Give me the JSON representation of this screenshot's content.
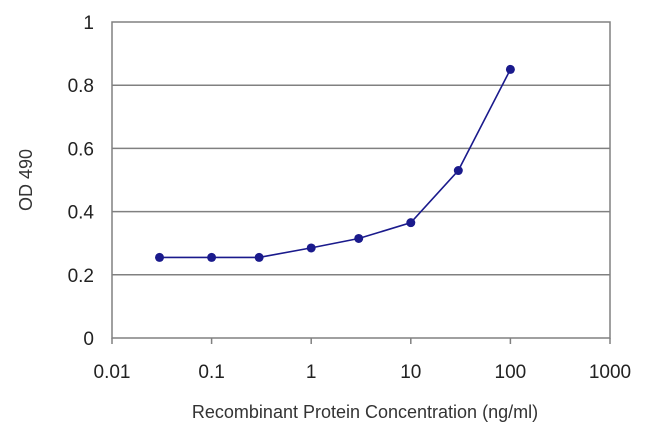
{
  "chart_data": {
    "type": "line",
    "title": "",
    "xlabel": "Recombinant Protein Concentration (ng/ml)",
    "ylabel": "OD 490",
    "x_scale": "log",
    "xlim": [
      0.01,
      1000
    ],
    "ylim": [
      0,
      1
    ],
    "x_ticks": [
      0.01,
      0.1,
      1,
      10,
      100,
      1000
    ],
    "x_tick_labels": [
      "0.01",
      "0.1",
      "1",
      "10",
      "100",
      "1000"
    ],
    "y_ticks": [
      0,
      0.2,
      0.4,
      0.6,
      0.8,
      1
    ],
    "y_tick_labels": [
      "0",
      "0.2",
      "0.4",
      "0.6",
      "0.8",
      "1"
    ],
    "grid": "horizontal",
    "legend": "none",
    "series": [
      {
        "color": "#1a1a8c",
        "x": [
          0.03,
          0.1,
          0.3,
          1,
          3,
          10,
          30,
          100
        ],
        "y": [
          0.255,
          0.255,
          0.255,
          0.285,
          0.315,
          0.365,
          0.53,
          0.85
        ]
      }
    ]
  }
}
